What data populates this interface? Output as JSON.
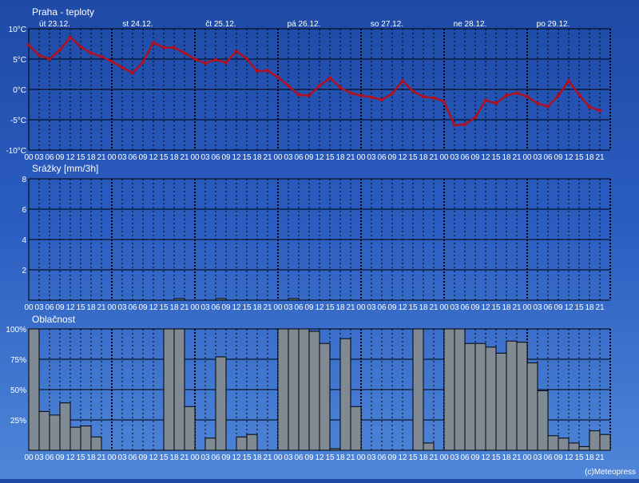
{
  "credit": "(c)Meteopress",
  "chart_data": [
    {
      "id": "temperature",
      "type": "line",
      "title": "Praha - teploty",
      "unit": "°C",
      "ylim": [
        -10,
        10
      ],
      "yticks": [
        "10°C",
        "5°C",
        "0°C",
        "-5°C",
        "-10°C"
      ],
      "ytick_values": [
        10,
        5,
        0,
        -5,
        -10
      ],
      "days": [
        "út 23.12.",
        "st 24.12.",
        "čt 25.12.",
        "pá 26.12.",
        "so 27.12.",
        "ne 28.12.",
        "po 29.12."
      ],
      "hours": [
        "00",
        "03",
        "06",
        "09",
        "12",
        "15",
        "18",
        "21"
      ],
      "color": "#b01020",
      "values": [
        7.3,
        5.6,
        5.0,
        6.5,
        8.6,
        7.0,
        6.0,
        5.4,
        4.6,
        3.6,
        2.7,
        4.5,
        7.7,
        6.9,
        6.9,
        6.0,
        5.0,
        4.3,
        4.9,
        4.4,
        6.3,
        5.0,
        3.0,
        3.1,
        2.0,
        0.6,
        -0.9,
        -1.0,
        0.6,
        1.9,
        0.3,
        -0.6,
        -1.0,
        -1.3,
        -1.7,
        -0.7,
        1.4,
        -0.3,
        -1.2,
        -1.4,
        -2.0,
        -5.9,
        -5.8,
        -4.6,
        -1.8,
        -2.3,
        -1.0,
        -0.6,
        -1.2,
        -2.3,
        -2.8,
        -1.0,
        1.4,
        -0.9,
        -2.9,
        -3.5
      ]
    },
    {
      "id": "precipitation",
      "type": "bar",
      "title": "Srážky [mm/3h]",
      "ylim": [
        0,
        8
      ],
      "yticks": [
        "8",
        "6",
        "4",
        "2"
      ],
      "ytick_values": [
        8,
        6,
        4,
        2
      ],
      "hours": [
        "00",
        "03",
        "06",
        "09",
        "12",
        "15",
        "18",
        "21"
      ],
      "color": "#808a94",
      "values": [
        0,
        0,
        0,
        0,
        0,
        0,
        0,
        0,
        0,
        0,
        0,
        0,
        0,
        0,
        0.1,
        0,
        0,
        0,
        0.1,
        0,
        0,
        0,
        0,
        0,
        0,
        0.1,
        0,
        0,
        0,
        0,
        0,
        0,
        0,
        0,
        0,
        0,
        0,
        0,
        0,
        0,
        0,
        0,
        0,
        0,
        0,
        0,
        0,
        0,
        0,
        0,
        0,
        0,
        0,
        0,
        0,
        0
      ]
    },
    {
      "id": "cloudiness",
      "type": "bar",
      "title": "Oblačnost",
      "unit": "%",
      "ylim": [
        0,
        100
      ],
      "yticks": [
        "100%",
        "75%",
        "50%",
        "25%"
      ],
      "ytick_values": [
        100,
        75,
        50,
        25
      ],
      "hours": [
        "00",
        "03",
        "06",
        "09",
        "12",
        "15",
        "18",
        "21"
      ],
      "color": "#808a94",
      "values": [
        100,
        32,
        29,
        39,
        19,
        20,
        11,
        0,
        0,
        0,
        0,
        0,
        0,
        100,
        100,
        36,
        0,
        10,
        77,
        0,
        11,
        13,
        0,
        0,
        100,
        100,
        100,
        98,
        88,
        1,
        92,
        36,
        0,
        0,
        0,
        0,
        0,
        100,
        6,
        0,
        100,
        100,
        88,
        88,
        85,
        80,
        90,
        89,
        72,
        49,
        12,
        10,
        6,
        3,
        16,
        13
      ]
    }
  ]
}
